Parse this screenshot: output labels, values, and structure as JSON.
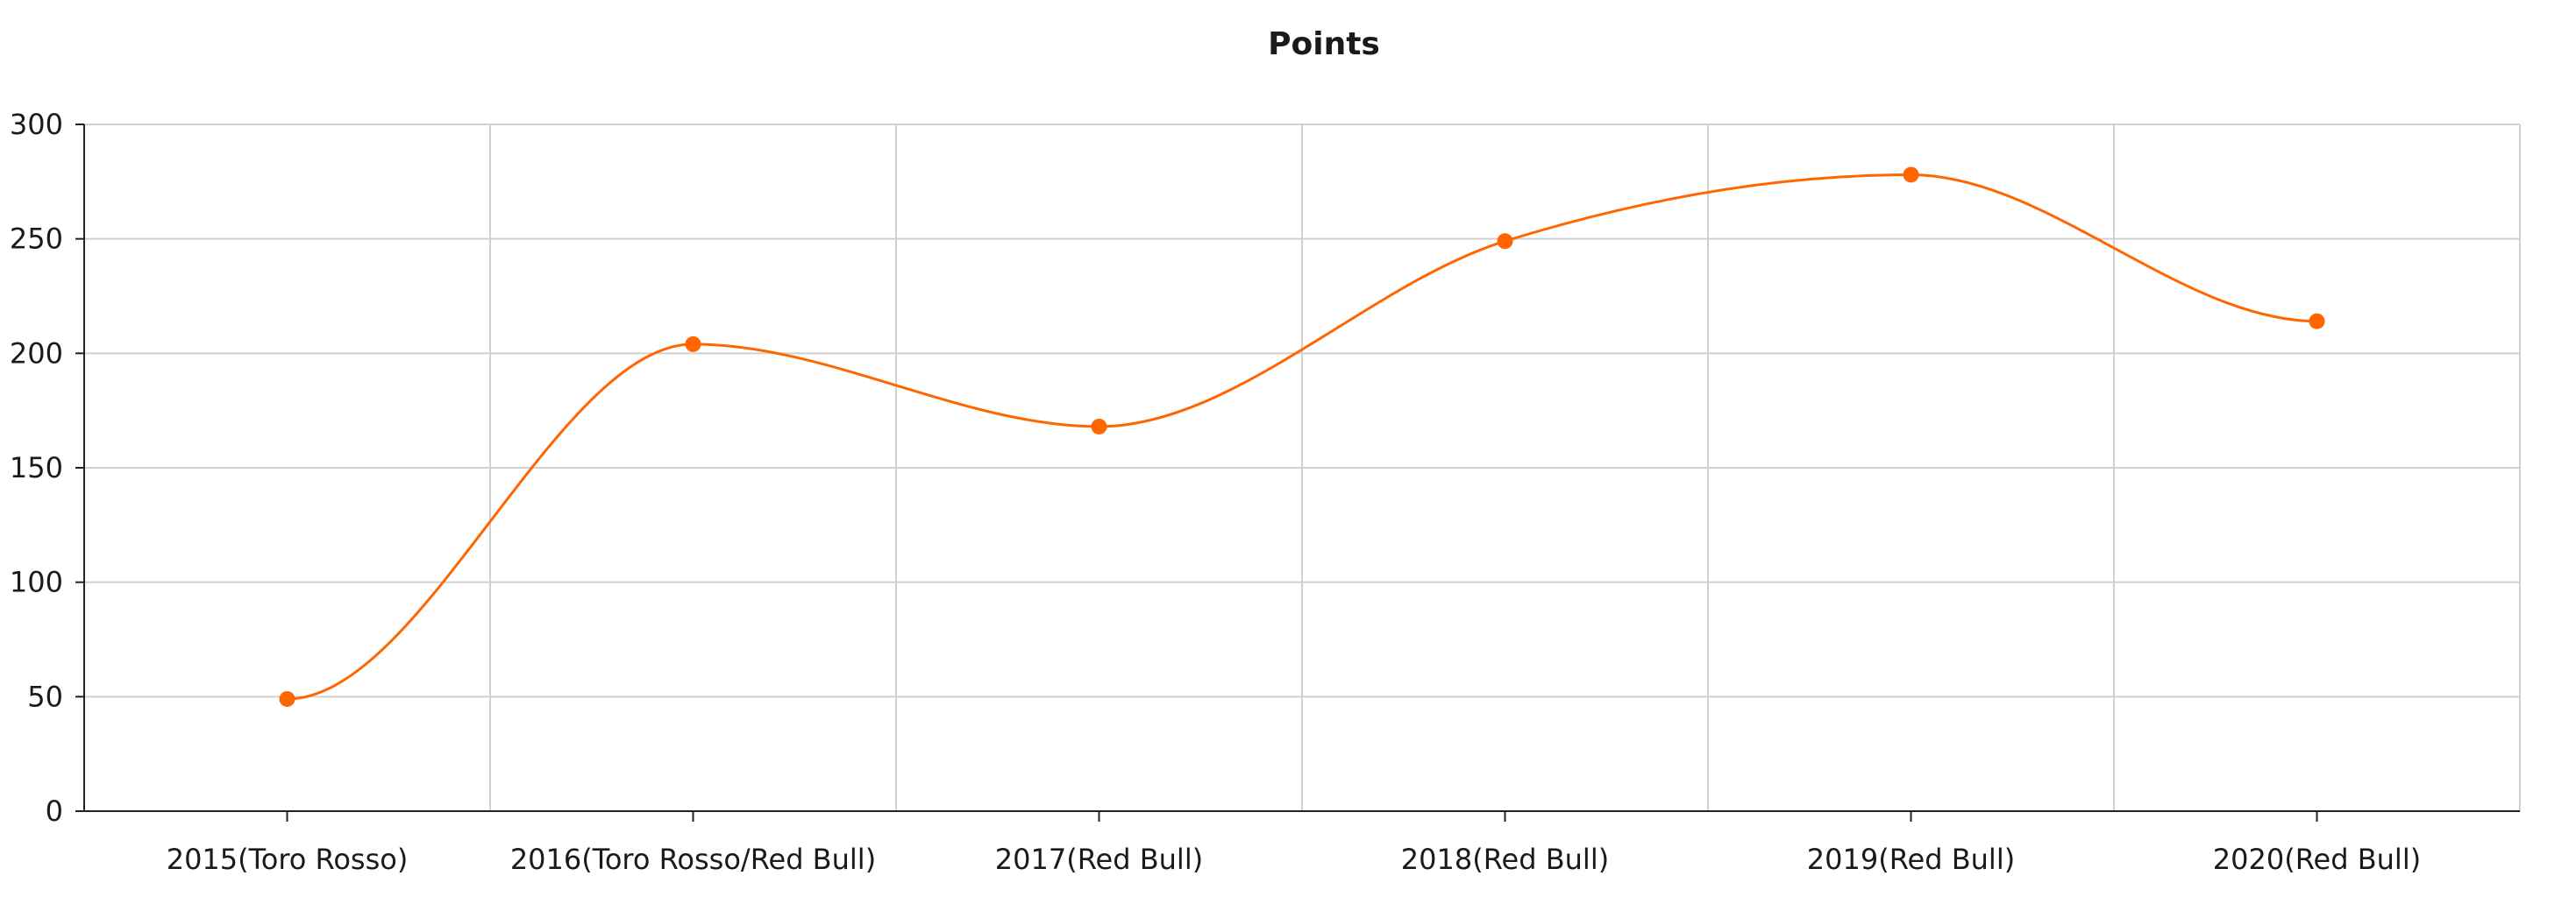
{
  "chart_data": {
    "type": "line",
    "title": "Points",
    "xlabel": "",
    "ylabel": "",
    "categories": [
      "2015(Toro Rosso)",
      "2016(Toro Rosso/Red Bull)",
      "2017(Red Bull)",
      "2018(Red Bull)",
      "2019(Red Bull)",
      "2020(Red Bull)"
    ],
    "series": [
      {
        "values": [
          49,
          204,
          168,
          249,
          278,
          214
        ],
        "color": "#ff6600"
      }
    ],
    "ylim": [
      0,
      300
    ],
    "yticks": [
      0,
      50,
      100,
      150,
      200,
      250,
      300
    ],
    "grid": true,
    "smooth": true,
    "legend": "none"
  }
}
